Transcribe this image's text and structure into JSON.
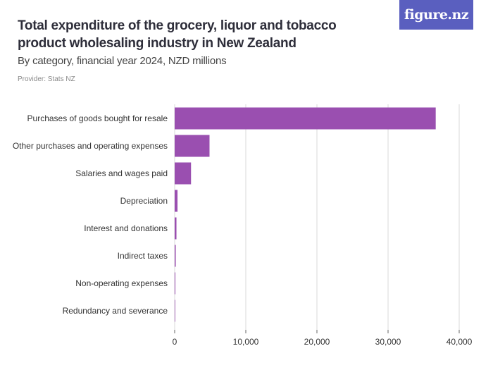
{
  "header": {
    "title": "Total expenditure of the grocery, liquor and tobacco product wholesaling industry in New Zealand",
    "subtitle": "By category, financial year 2024, NZD millions",
    "provider": "Provider: Stats NZ",
    "logo_text": "figure.nz"
  },
  "colors": {
    "bar": "#9a4fb0",
    "logo_bg": "#5a5fbf",
    "grid": "#d9d9d9"
  },
  "chart_data": {
    "type": "bar",
    "orientation": "horizontal",
    "title": "Total expenditure of the grocery, liquor and tobacco product wholesaling industry in New Zealand",
    "subtitle": "By category, financial year 2024, NZD millions",
    "categories": [
      "Purchases of goods bought for resale",
      "Other purchases and operating expenses",
      "Salaries and wages paid",
      "Depreciation",
      "Interest and donations",
      "Indirect taxes",
      "Non-operating expenses",
      "Redundancy and severance"
    ],
    "values": [
      36700,
      4900,
      2300,
      400,
      250,
      150,
      100,
      20
    ],
    "xlim": [
      0,
      40000
    ],
    "xticks": [
      0,
      10000,
      20000,
      30000,
      40000
    ],
    "xtick_labels": [
      "0",
      "10,000",
      "20,000",
      "30,000",
      "40,000"
    ],
    "grid": true
  }
}
